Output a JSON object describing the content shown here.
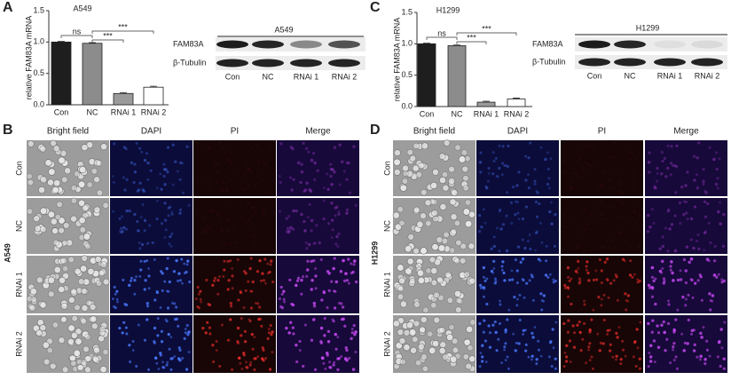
{
  "panels": [
    "A",
    "B",
    "C",
    "D"
  ],
  "chart_data": [
    {
      "type": "bar",
      "title": "A549",
      "ylabel": "relative FAM83A mRNA",
      "categories": [
        "Con",
        "NC",
        "RNAi 1",
        "RNAi 2"
      ],
      "values": [
        1.0,
        0.98,
        0.18,
        0.28
      ],
      "errors": [
        0.01,
        0.01,
        0.015,
        0.015
      ],
      "colors": [
        "#1e1e1e",
        "#8c8c8c",
        "#9a9a9a",
        "#ffffff"
      ],
      "ylim": [
        0,
        1.5
      ],
      "yticks": [
        {
          "value": 0,
          "label": "0.0"
        },
        {
          "value": 0.5,
          "label": "0.5"
        },
        {
          "value": 1,
          "label": "1.0"
        },
        {
          "value": 1.5,
          "label": "1.5"
        }
      ],
      "annotations": [
        "ns",
        "***",
        "***"
      ]
    },
    {
      "type": "bar",
      "title": "H1299",
      "ylabel": "relative FAM83A mRNA",
      "categories": [
        "Con",
        "NC",
        "RNAi 1",
        "RNAi 2"
      ],
      "values": [
        1.0,
        0.97,
        0.07,
        0.12
      ],
      "errors": [
        0.01,
        0.01,
        0.015,
        0.015
      ],
      "colors": [
        "#1e1e1e",
        "#8c8c8c",
        "#9a9a9a",
        "#ffffff"
      ],
      "ylim": [
        0,
        1.5
      ],
      "yticks": [
        {
          "value": 0,
          "label": "0.0"
        },
        {
          "value": 0.5,
          "label": "0.5"
        },
        {
          "value": 1,
          "label": "1.0"
        },
        {
          "value": 1.5,
          "label": "1.5"
        }
      ],
      "annotations": [
        "ns",
        "***",
        "***"
      ]
    }
  ],
  "blots": [
    {
      "title": "A549",
      "rows": [
        "FAM83A",
        "β-Tubulin"
      ],
      "lanes": [
        "Con",
        "NC",
        "RNAi 1",
        "RNAi 2"
      ]
    },
    {
      "title": "H1299",
      "rows": [
        "FAM83A",
        "β-Tubulin"
      ],
      "lanes": [
        "Con",
        "NC",
        "RNAi 1",
        "RNAi 2"
      ]
    }
  ],
  "micrographs": [
    {
      "cell_line": "A549",
      "columns": [
        "Bright field",
        "DAPI",
        "PI",
        "Merge"
      ],
      "rows": [
        "Con",
        "NC",
        "RNAi 1",
        "RNAi 2"
      ]
    },
    {
      "cell_line": "H1299",
      "columns": [
        "Bright field",
        "DAPI",
        "PI",
        "Merge"
      ],
      "rows": [
        "Con",
        "NC",
        "RNAi 1",
        "RNAi 2"
      ]
    }
  ]
}
